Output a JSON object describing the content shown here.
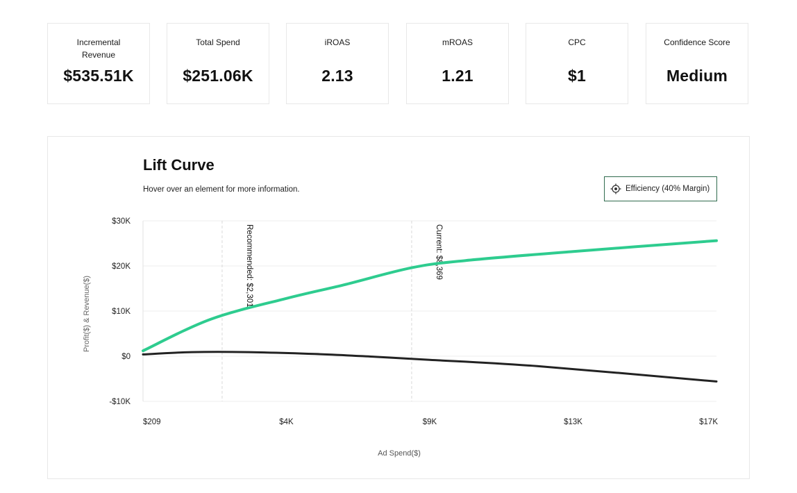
{
  "metrics": [
    {
      "label": "Incremental Revenue",
      "value": "$535.51K"
    },
    {
      "label": "Total Spend",
      "value": "$251.06K"
    },
    {
      "label": "iROAS",
      "value": "2.13"
    },
    {
      "label": "mROAS",
      "value": "1.21"
    },
    {
      "label": "CPC",
      "value": "$1"
    },
    {
      "label": "Confidence Score",
      "value": "Medium"
    }
  ],
  "chart": {
    "title": "Lift Curve",
    "subtitle": "Hover over an element for more information.",
    "efficiency_button": {
      "label": "Efficiency (40% Margin)",
      "icon": "target-icon"
    }
  },
  "colors": {
    "revenue": "#2ecc8f",
    "profit": "#222222",
    "accent_border": "#2f6b4e"
  },
  "chart_data": {
    "type": "line",
    "title": "Lift Curve",
    "xlabel": "Ad Spend($)",
    "ylabel": "Profit($) & Revenue($)",
    "xlim": [
      209,
      17000
    ],
    "ylim": [
      -10000,
      30000
    ],
    "x_ticks": [
      209,
      4000,
      9000,
      13000,
      17000
    ],
    "x_tick_labels": [
      "$209",
      "$4K",
      "$9K",
      "$13K",
      "$17K"
    ],
    "y_ticks": [
      30000,
      20000,
      10000,
      0,
      -10000
    ],
    "y_tick_labels": [
      "$30K",
      "$20K",
      "$10K",
      "$0",
      "-$10K"
    ],
    "grid": true,
    "series": [
      {
        "color": "#2ecc8f",
        "x": [
          209,
          2000,
          4000,
          6000,
          8369,
          10000,
          13000,
          17000
        ],
        "y": [
          1200,
          8200,
          12800,
          15800,
          19600,
          21200,
          23200,
          25600
        ]
      },
      {
        "color": "#222222",
        "x": [
          209,
          1500,
          3000,
          5000,
          7000,
          9000,
          12000,
          17000
        ],
        "y": [
          400,
          900,
          900,
          500,
          -100,
          -800,
          -2200,
          -5600
        ]
      }
    ],
    "annotations": [
      {
        "x": 2301,
        "label": "Recommended: $2,301"
      },
      {
        "x": 8369,
        "label": "Current: $8,369"
      }
    ]
  }
}
